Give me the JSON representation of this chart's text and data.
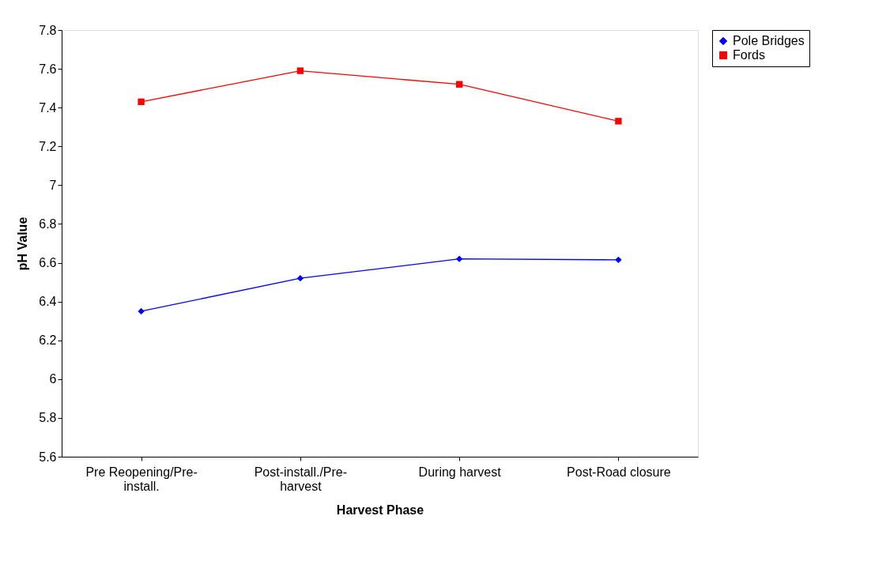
{
  "chart_data": {
    "type": "line",
    "xlabel": "Harvest Phase",
    "ylabel": "pH Value",
    "categories": [
      "Pre Reopening/Pre-install.",
      "Post-install./Pre-harvest",
      "During harvest",
      "Post-Road closure"
    ],
    "series": [
      {
        "name": "Pole Bridges",
        "color": "#0000ff",
        "marker": "diamond",
        "values": [
          6.35,
          6.52,
          6.62,
          6.615
        ]
      },
      {
        "name": "Fords",
        "color": "#ff0000",
        "marker": "square",
        "values": [
          7.43,
          7.59,
          7.52,
          7.33
        ]
      }
    ],
    "ylim": [
      5.6,
      7.8
    ],
    "yticks": [
      5.6,
      5.8,
      6,
      6.2,
      6.4,
      6.6,
      6.8,
      7,
      7.2,
      7.4,
      7.6,
      7.8
    ],
    "grid": false,
    "legend": "right",
    "line_style": "solid"
  }
}
